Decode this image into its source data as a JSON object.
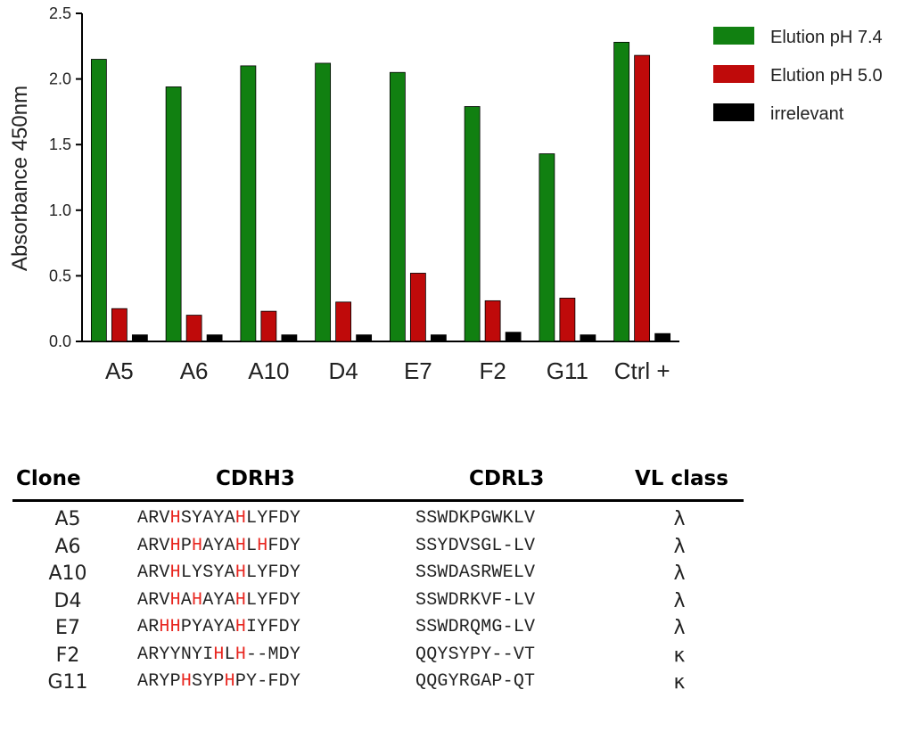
{
  "chart_data": {
    "type": "bar",
    "categories": [
      "A5",
      "A6",
      "A10",
      "D4",
      "E7",
      "F2",
      "G11",
      "Ctrl +"
    ],
    "series": [
      {
        "name": "Elution pH 7.4",
        "color": "#118011",
        "values": [
          2.15,
          1.94,
          2.1,
          2.12,
          2.05,
          1.79,
          1.43,
          2.28
        ]
      },
      {
        "name": "Elution pH 5.0",
        "color": "#bf0a0a",
        "values": [
          0.25,
          0.2,
          0.23,
          0.3,
          0.52,
          0.31,
          0.33,
          2.18
        ]
      },
      {
        "name": "irrelevant",
        "color": "#000000",
        "values": [
          0.05,
          0.05,
          0.05,
          0.05,
          0.05,
          0.07,
          0.05,
          0.06
        ]
      }
    ],
    "ylabel": "Absorbance 450nm",
    "ylim": [
      0,
      2.5
    ],
    "yticks": [
      "0.0",
      "0.5",
      "1.0",
      "1.5",
      "2.0",
      "2.5"
    ],
    "legend_position": "top-right",
    "grid": false
  },
  "table": {
    "headers": {
      "clone": "Clone",
      "cdrh3": "CDRH3",
      "cdrl3": "CDRL3",
      "vl": "VL class"
    },
    "highlight_residue": "H",
    "highlight_color": "#e8261f",
    "rows": [
      {
        "clone": "A5",
        "cdrh3": "ARVHSYAYAHLYFDY",
        "cdrh3_highlight": [
          3,
          9
        ],
        "cdrl3": "SSWDKPGWKLV",
        "vl": "λ"
      },
      {
        "clone": "A6",
        "cdrh3": "ARVHPHAYAHLHFDY",
        "cdrh3_highlight": [
          3,
          5,
          9,
          11
        ],
        "cdrl3": "SSYDVSGL-LV",
        "vl": "λ"
      },
      {
        "clone": "A10",
        "cdrh3": "ARVHLYSYAHLYFDY",
        "cdrh3_highlight": [
          3,
          9
        ],
        "cdrl3": "SSWDASRWELV",
        "vl": "λ"
      },
      {
        "clone": "D4",
        "cdrh3": "ARVHAHAYAHLYFDY",
        "cdrh3_highlight": [
          3,
          5,
          9
        ],
        "cdrl3": "SSWDRKVF-LV",
        "vl": "λ"
      },
      {
        "clone": "E7",
        "cdrh3": "ARHHPYAYAHIYFDY",
        "cdrh3_highlight": [
          2,
          3,
          9
        ],
        "cdrl3": "SSWDRQMG-LV",
        "vl": "λ"
      },
      {
        "clone": "F2",
        "cdrh3": "ARYYNYIHLH--MDY",
        "cdrh3_highlight": [
          7,
          9
        ],
        "cdrl3": "QQYSYPY--VT",
        "vl": "κ"
      },
      {
        "clone": "G11",
        "cdrh3": "ARYPHSYPHPY-FDY",
        "cdrh3_highlight": [
          4,
          8
        ],
        "cdrl3": "QQGYRGAP-QT",
        "vl": "κ"
      }
    ]
  }
}
